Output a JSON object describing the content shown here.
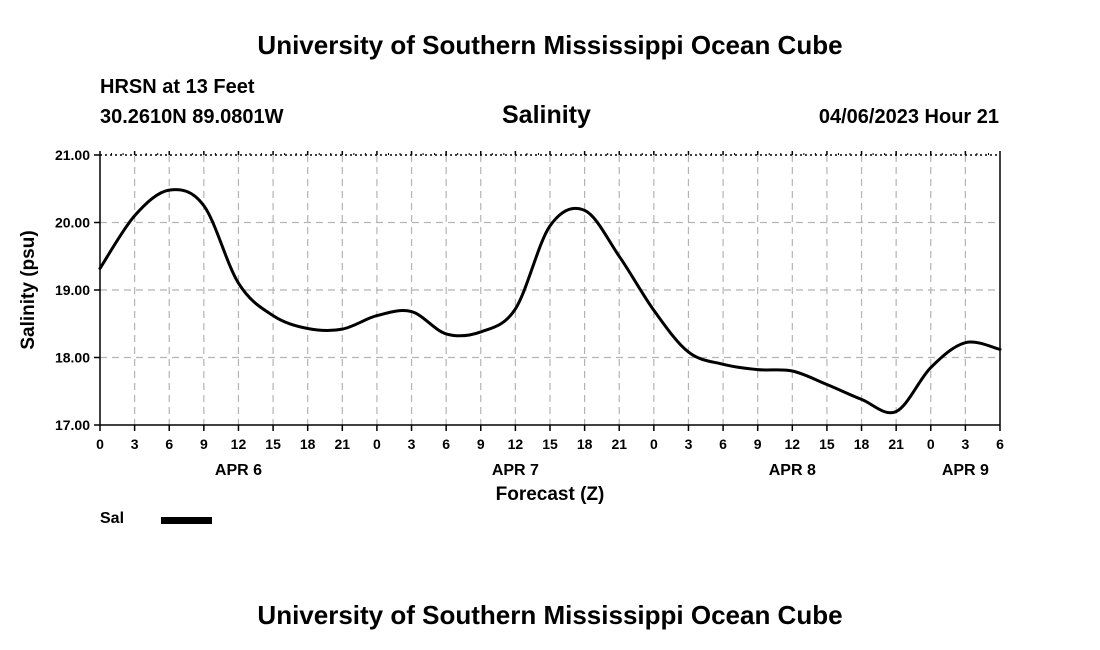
{
  "header": {
    "title": "University of Southern Mississippi Ocean Cube",
    "station": "HRSN at 13 Feet",
    "coords": "30.2610N  89.0801W",
    "chart_title": "Salinity",
    "timestamp": "04/06/2023 Hour 21"
  },
  "legend": {
    "label": "Sal"
  },
  "footer": {
    "title": "University of Southern Mississippi Ocean Cube"
  },
  "chart_data": {
    "type": "line",
    "title": "Salinity",
    "xlabel": "Forecast (Z)",
    "ylabel": "Salinity (psu)",
    "ylim": [
      17.0,
      21.0
    ],
    "xlim": [
      0,
      78
    ],
    "y_ticks": [
      "17.00",
      "18.00",
      "19.00",
      "20.00",
      "21.00"
    ],
    "x_tick_labels": [
      "0",
      "3",
      "6",
      "9",
      "12",
      "15",
      "18",
      "21",
      "0",
      "3",
      "6",
      "9",
      "12",
      "15",
      "18",
      "21",
      "0",
      "3",
      "6",
      "9",
      "12",
      "15",
      "18",
      "21",
      "0",
      "3",
      "6"
    ],
    "day_labels": [
      {
        "hour": 12,
        "label": "APR 6"
      },
      {
        "hour": 36,
        "label": "APR 7"
      },
      {
        "hour": 60,
        "label": "APR 8"
      },
      {
        "hour": 75,
        "label": "APR 9"
      }
    ],
    "grid": true,
    "series": [
      {
        "name": "Sal",
        "x": [
          0,
          3,
          6,
          9,
          12,
          15,
          18,
          21,
          24,
          27,
          30,
          33,
          36,
          39,
          42,
          45,
          48,
          51,
          54,
          57,
          60,
          63,
          66,
          69,
          72,
          75,
          78
        ],
        "values": [
          19.32,
          20.1,
          20.48,
          20.25,
          19.1,
          18.62,
          18.43,
          18.42,
          18.62,
          18.68,
          18.35,
          18.38,
          18.72,
          19.95,
          20.18,
          19.5,
          18.7,
          18.08,
          17.9,
          17.82,
          17.8,
          17.6,
          17.38,
          17.2,
          17.85,
          18.22,
          18.12
        ]
      }
    ]
  }
}
